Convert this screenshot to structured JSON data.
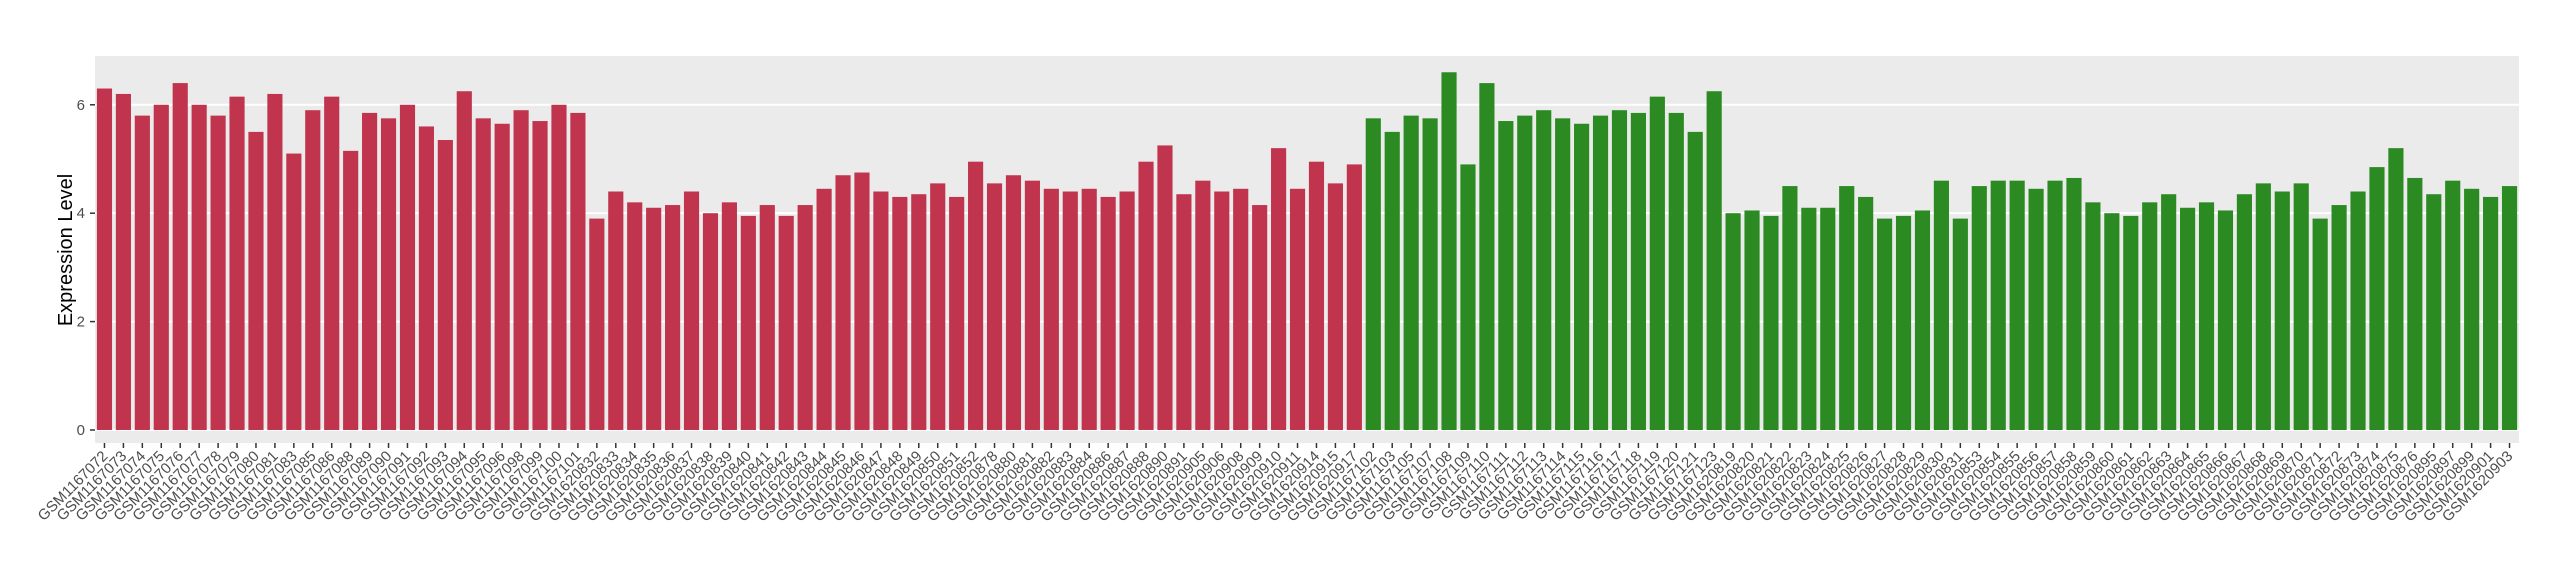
{
  "chart_data": {
    "type": "bar",
    "y_label": "Expression Level",
    "categories": [
      "GSM1167072",
      "GSM1167073",
      "GSM1167074",
      "GSM1167075",
      "GSM1167076",
      "GSM1167077",
      "GSM1167078",
      "GSM1167079",
      "GSM1167080",
      "GSM1167081",
      "GSM1167083",
      "GSM1167085",
      "GSM1167086",
      "GSM1167088",
      "GSM1167089",
      "GSM1167090",
      "GSM1167091",
      "GSM1167092",
      "GSM1167093",
      "GSM1167094",
      "GSM1167095",
      "GSM1167096",
      "GSM1167098",
      "GSM1167099",
      "GSM1167100",
      "GSM1167101",
      "GSM1620832",
      "GSM1620833",
      "GSM1620834",
      "GSM1620835",
      "GSM1620836",
      "GSM1620837",
      "GSM1620838",
      "GSM1620839",
      "GSM1620840",
      "GSM1620841",
      "GSM1620842",
      "GSM1620843",
      "GSM1620844",
      "GSM1620845",
      "GSM1620846",
      "GSM1620847",
      "GSM1620848",
      "GSM1620849",
      "GSM1620850",
      "GSM1620851",
      "GSM1620852",
      "GSM1620878",
      "GSM1620880",
      "GSM1620881",
      "GSM1620882",
      "GSM1620883",
      "GSM1620884",
      "GSM1620886",
      "GSM1620887",
      "GSM1620888",
      "GSM1620890",
      "GSM1620891",
      "GSM1620905",
      "GSM1620906",
      "GSM1620908",
      "GSM1620909",
      "GSM1620910",
      "GSM1620911",
      "GSM1620914",
      "GSM1620915",
      "GSM1620917",
      "GSM1167102",
      "GSM1167103",
      "GSM1167105",
      "GSM1167107",
      "GSM1167108",
      "GSM1167109",
      "GSM1167110",
      "GSM1167111",
      "GSM1167112",
      "GSM1167113",
      "GSM1167114",
      "GSM1167115",
      "GSM1167116",
      "GSM1167117",
      "GSM1167118",
      "GSM1167119",
      "GSM1167120",
      "GSM1167121",
      "GSM1167123",
      "GSM1620819",
      "GSM1620820",
      "GSM1620821",
      "GSM1620822",
      "GSM1620823",
      "GSM1620824",
      "GSM1620825",
      "GSM1620826",
      "GSM1620827",
      "GSM1620828",
      "GSM1620829",
      "GSM1620830",
      "GSM1620831",
      "GSM1620853",
      "GSM1620854",
      "GSM1620855",
      "GSM1620856",
      "GSM1620857",
      "GSM1620858",
      "GSM1620859",
      "GSM1620860",
      "GSM1620861",
      "GSM1620862",
      "GSM1620863",
      "GSM1620864",
      "GSM1620865",
      "GSM1620866",
      "GSM1620867",
      "GSM1620868",
      "GSM1620869",
      "GSM1620870",
      "GSM1620871",
      "GSM1620872",
      "GSM1620873",
      "GSM1620874",
      "GSM1620875",
      "GSM1620876",
      "GSM1620895",
      "GSM1620897",
      "GSM1620899",
      "GSM1620901",
      "GSM1620903"
    ],
    "values": [
      6.3,
      6.2,
      5.8,
      6.0,
      6.4,
      6.0,
      5.8,
      6.15,
      5.5,
      6.2,
      5.1,
      5.9,
      6.15,
      5.15,
      5.85,
      5.75,
      6.0,
      5.6,
      5.35,
      6.25,
      5.75,
      5.65,
      5.9,
      5.7,
      6.0,
      5.85,
      3.9,
      4.4,
      4.2,
      4.1,
      4.15,
      4.4,
      4.0,
      4.2,
      3.95,
      4.15,
      3.95,
      4.15,
      4.45,
      4.7,
      4.75,
      4.4,
      4.3,
      4.35,
      4.55,
      4.3,
      4.95,
      4.55,
      4.7,
      4.6,
      4.45,
      4.4,
      4.45,
      4.3,
      4.4,
      4.95,
      5.25,
      4.35,
      4.6,
      4.4,
      4.45,
      4.15,
      5.2,
      4.45,
      4.95,
      4.55,
      4.9,
      5.75,
      5.5,
      5.8,
      5.75,
      6.6,
      4.9,
      6.4,
      5.7,
      5.8,
      5.9,
      5.75,
      5.65,
      5.8,
      5.9,
      5.85,
      6.15,
      5.85,
      5.5,
      6.25,
      4.0,
      4.05,
      3.95,
      4.5,
      4.1,
      4.1,
      4.5,
      4.3,
      3.9,
      3.95,
      4.05,
      4.6,
      3.9,
      4.5,
      4.6,
      4.6,
      4.45,
      4.6,
      4.65,
      4.2,
      4.0,
      3.95,
      4.2,
      4.35,
      4.1,
      4.2,
      4.05,
      4.35,
      4.55,
      4.4,
      4.55,
      3.9,
      4.15,
      4.4,
      4.85,
      5.2,
      4.65,
      4.35,
      4.6,
      4.45,
      4.3,
      4.5
    ],
    "colors": [
      "#c1344d",
      "#c1344d",
      "#c1344d",
      "#c1344d",
      "#c1344d",
      "#c1344d",
      "#c1344d",
      "#c1344d",
      "#c1344d",
      "#c1344d",
      "#c1344d",
      "#c1344d",
      "#c1344d",
      "#c1344d",
      "#c1344d",
      "#c1344d",
      "#c1344d",
      "#c1344d",
      "#c1344d",
      "#c1344d",
      "#c1344d",
      "#c1344d",
      "#c1344d",
      "#c1344d",
      "#c1344d",
      "#c1344d",
      "#c1344d",
      "#c1344d",
      "#c1344d",
      "#c1344d",
      "#c1344d",
      "#c1344d",
      "#c1344d",
      "#c1344d",
      "#c1344d",
      "#c1344d",
      "#c1344d",
      "#c1344d",
      "#c1344d",
      "#c1344d",
      "#c1344d",
      "#c1344d",
      "#c1344d",
      "#c1344d",
      "#c1344d",
      "#c1344d",
      "#c1344d",
      "#c1344d",
      "#c1344d",
      "#c1344d",
      "#c1344d",
      "#c1344d",
      "#c1344d",
      "#c1344d",
      "#c1344d",
      "#c1344d",
      "#c1344d",
      "#c1344d",
      "#c1344d",
      "#c1344d",
      "#c1344d",
      "#c1344d",
      "#c1344d",
      "#c1344d",
      "#c1344d",
      "#c1344d",
      "#c1344d",
      "#2b8a22",
      "#2b8a22",
      "#2b8a22",
      "#2b8a22",
      "#2b8a22",
      "#2b8a22",
      "#2b8a22",
      "#2b8a22",
      "#2b8a22",
      "#2b8a22",
      "#2b8a22",
      "#2b8a22",
      "#2b8a22",
      "#2b8a22",
      "#2b8a22",
      "#2b8a22",
      "#2b8a22",
      "#2b8a22",
      "#2b8a22",
      "#2b8a22",
      "#2b8a22",
      "#2b8a22",
      "#2b8a22",
      "#2b8a22",
      "#2b8a22",
      "#2b8a22",
      "#2b8a22",
      "#2b8a22",
      "#2b8a22",
      "#2b8a22",
      "#2b8a22",
      "#2b8a22",
      "#2b8a22",
      "#2b8a22",
      "#2b8a22",
      "#2b8a22",
      "#2b8a22",
      "#2b8a22",
      "#2b8a22",
      "#2b8a22",
      "#2b8a22",
      "#2b8a22",
      "#2b8a22",
      "#2b8a22",
      "#2b8a22",
      "#2b8a22",
      "#2b8a22",
      "#2b8a22",
      "#2b8a22",
      "#2b8a22",
      "#2b8a22",
      "#2b8a22",
      "#2b8a22",
      "#2b8a22",
      "#2b8a22",
      "#2b8a22",
      "#2b8a22",
      "#2b8a22",
      "#2b8a22",
      "#2b8a22",
      "#2b8a22"
    ],
    "ylim": [
      -0.24,
      6.9
    ],
    "yticks": [
      0,
      2,
      4,
      6
    ],
    "grid": true
  }
}
